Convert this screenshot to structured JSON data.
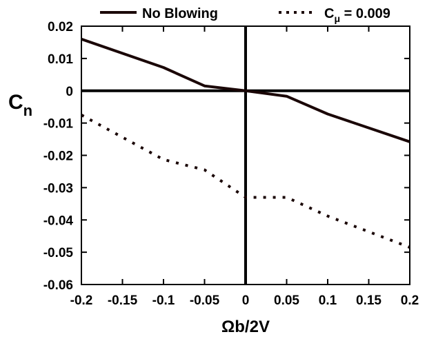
{
  "chart_data": {
    "type": "line",
    "xlabel": "Ωb/2V",
    "ylabel_main": "C",
    "ylabel_sub": "n",
    "xlim": [
      -0.2,
      0.2
    ],
    "ylim": [
      -0.06,
      0.02
    ],
    "x_ticks": [
      -0.2,
      -0.15,
      -0.1,
      -0.05,
      0,
      0.05,
      0.1,
      0.15,
      0.2
    ],
    "x_tick_labels": [
      "-0.2",
      "-0.15",
      "-0.1",
      "-0.05",
      "0",
      "0.05",
      "0.1",
      "0.15",
      "0.2"
    ],
    "y_ticks": [
      0.02,
      0.01,
      0,
      -0.01,
      -0.02,
      -0.03,
      -0.04,
      -0.05,
      -0.06
    ],
    "y_tick_labels": [
      "0.02",
      "0.01",
      "0",
      "-0.01",
      "-0.02",
      "-0.03",
      "-0.04",
      "-0.05",
      "-0.06"
    ],
    "grid": false,
    "legend_position": "top",
    "legend": {
      "series1_label": "No Blowing",
      "series2_prefix": "C",
      "series2_sub": "μ",
      "series2_suffix": " = 0.009"
    },
    "series": [
      {
        "name": "No Blowing",
        "style": "solid",
        "color": "#1a0606",
        "x": [
          -0.2,
          -0.1,
          -0.05,
          0,
          0.05,
          0.1,
          0.2
        ],
        "y": [
          0.016,
          0.0072,
          0.0015,
          0.0,
          -0.0017,
          -0.0072,
          -0.0158
        ]
      },
      {
        "name": "C_μ = 0.009",
        "style": "dotted",
        "color": "#1a0606",
        "x": [
          -0.2,
          -0.1,
          -0.05,
          0,
          0.05,
          0.1,
          0.2
        ],
        "y": [
          -0.0075,
          -0.0213,
          -0.0245,
          -0.033,
          -0.033,
          -0.0388,
          -0.0485
        ]
      }
    ]
  }
}
